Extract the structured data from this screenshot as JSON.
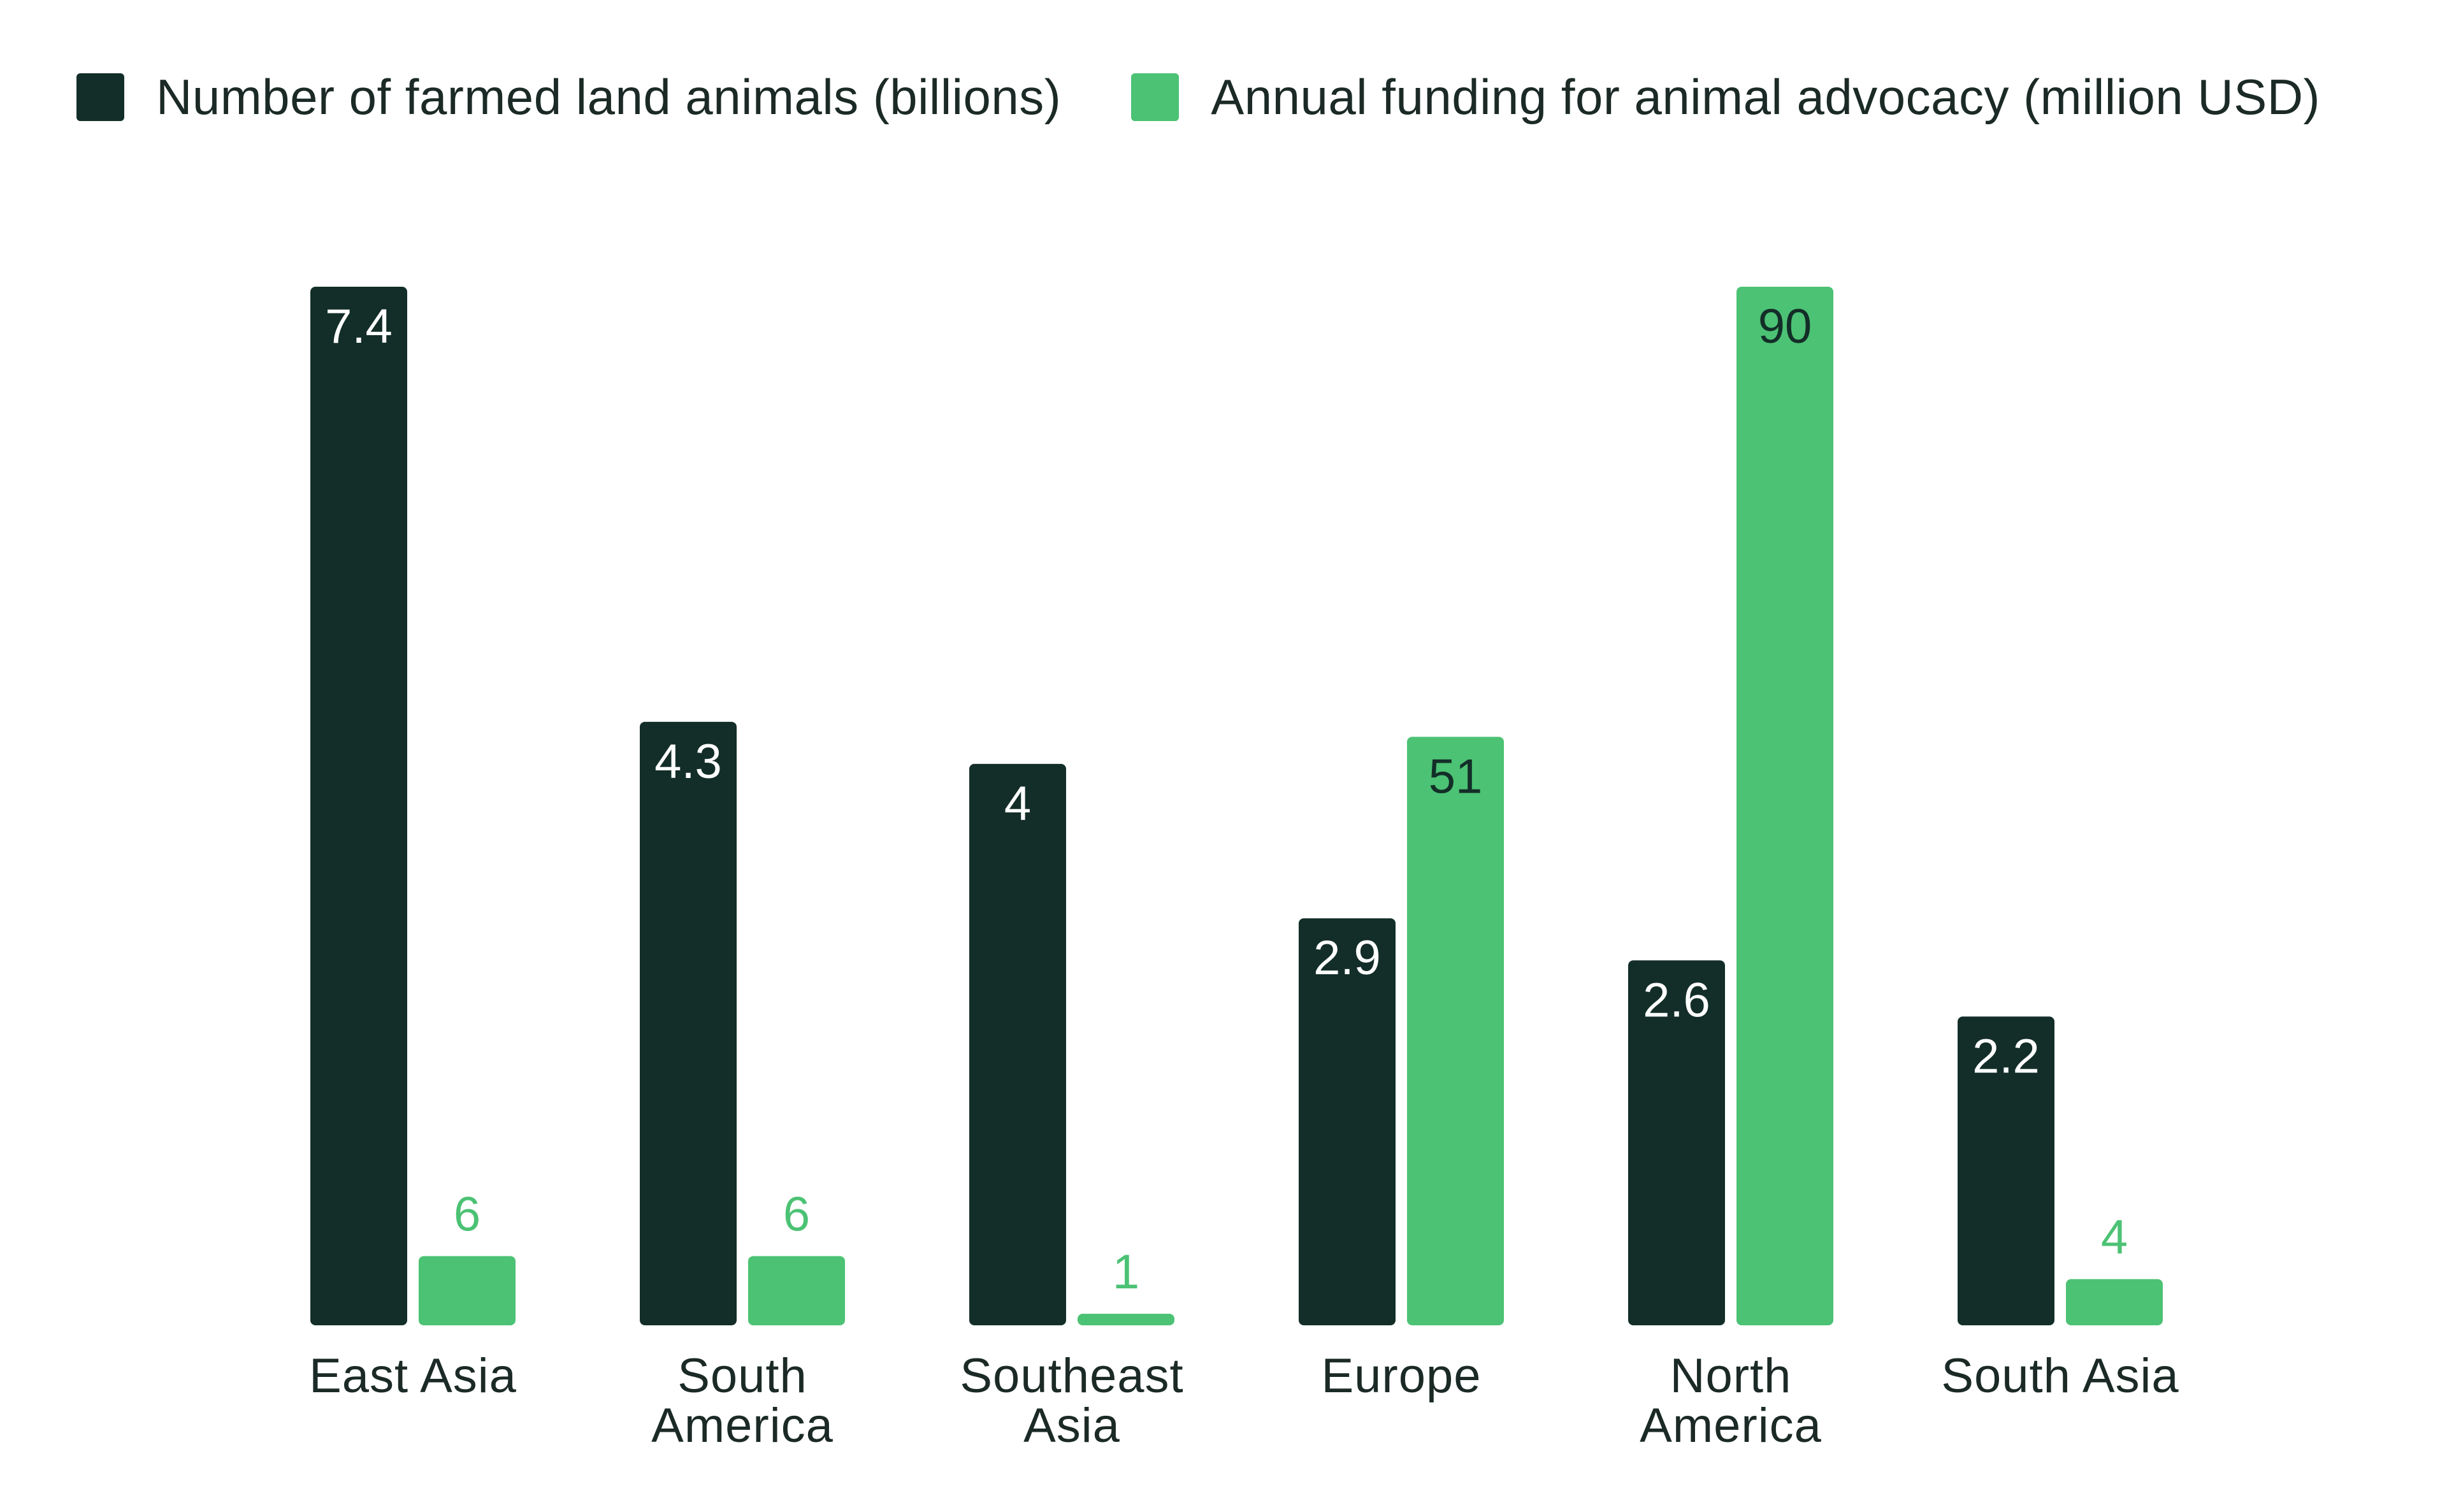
{
  "colors": {
    "series_dark": "#132e28",
    "series_green": "#4cc274",
    "label_on_dark": "#ffffff",
    "label_on_green": "#132e28",
    "label_above_green": "#4cc274",
    "axis_text": "#1b2a26"
  },
  "legend": {
    "items": [
      {
        "label": "Number of farmed land animals (billions)"
      },
      {
        "label": "Annual funding for animal advocacy (million USD)"
      }
    ]
  },
  "chart_data": {
    "type": "bar",
    "title": "",
    "xlabel": "",
    "ylabel": "",
    "categories": [
      [
        "East Asia"
      ],
      [
        "South",
        "America"
      ],
      [
        "Southeast",
        "Asia"
      ],
      [
        "Europe"
      ],
      [
        "North",
        "America"
      ],
      [
        "South Asia"
      ]
    ],
    "series": [
      {
        "name": "Number of farmed land animals (billions)",
        "values": [
          7.4,
          4.3,
          4,
          2.9,
          2.6,
          2.2
        ],
        "ylim": [
          0,
          7.4
        ]
      },
      {
        "name": "Annual funding for animal advocacy (million USD)",
        "values": [
          6,
          6,
          1,
          51,
          90,
          4
        ],
        "ylim": [
          0,
          90
        ]
      }
    ],
    "legend_position": "top-left",
    "grid": false
  }
}
